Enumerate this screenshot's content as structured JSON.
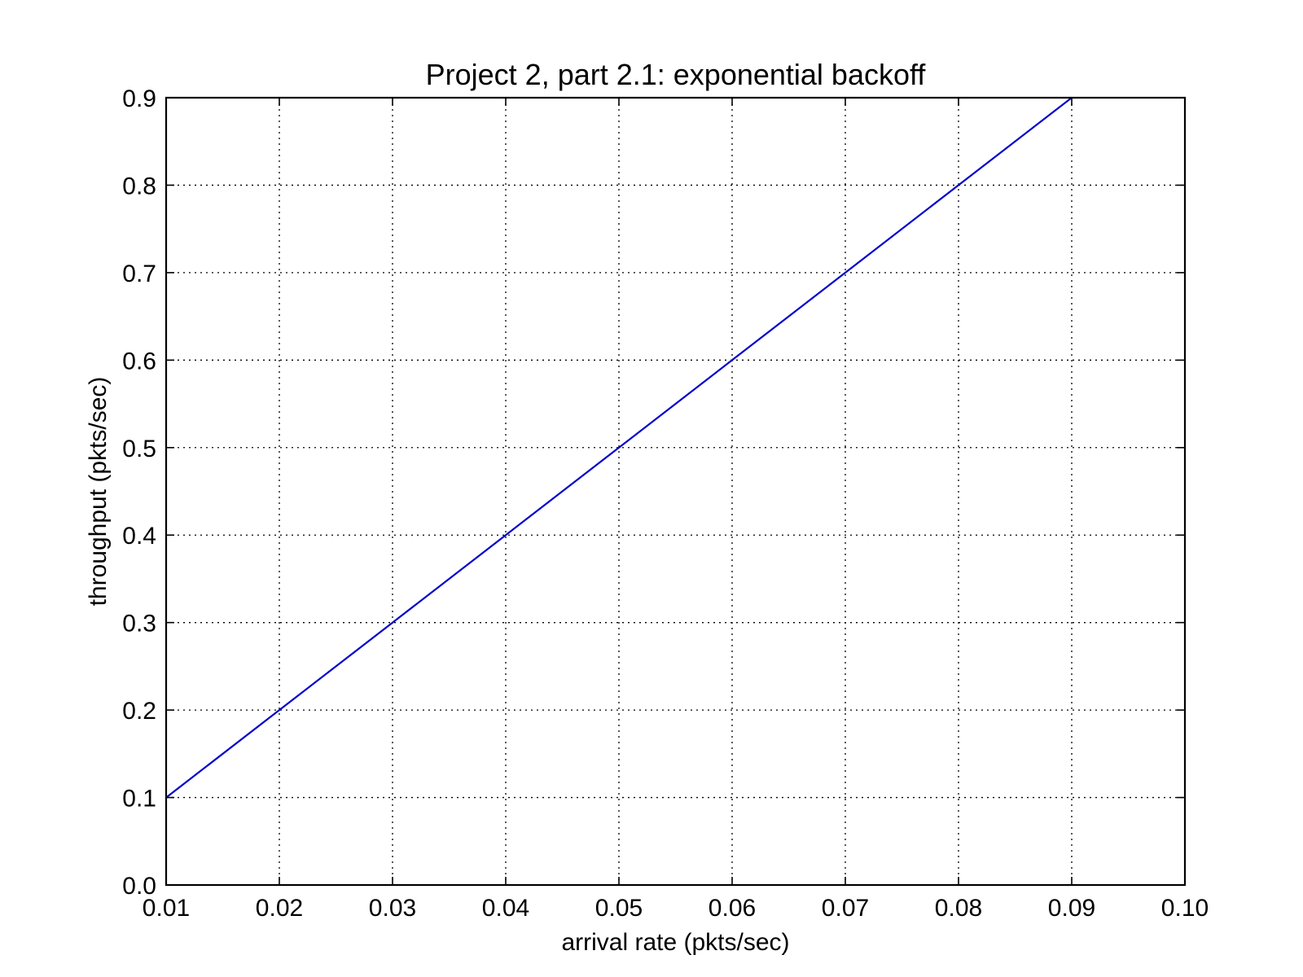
{
  "chart_data": {
    "type": "line",
    "title": "Project 2, part 2.1: exponential backoff",
    "xlabel": "arrival rate (pkts/sec)",
    "ylabel": "throughput (pkts/sec)",
    "xlim": [
      0.01,
      0.1
    ],
    "ylim": [
      0.0,
      0.9
    ],
    "x_ticks": [
      "0.01",
      "0.02",
      "0.03",
      "0.04",
      "0.05",
      "0.06",
      "0.07",
      "0.08",
      "0.09",
      "0.10"
    ],
    "y_ticks": [
      "0.0",
      "0.1",
      "0.2",
      "0.3",
      "0.4",
      "0.5",
      "0.6",
      "0.7",
      "0.8",
      "0.9"
    ],
    "grid": true,
    "series": [
      {
        "color": "#0000cc",
        "x": [
          0.01,
          0.02,
          0.03,
          0.04,
          0.05,
          0.06,
          0.07,
          0.08,
          0.09
        ],
        "y": [
          0.1,
          0.2,
          0.3,
          0.4,
          0.5,
          0.6,
          0.7,
          0.8,
          0.9
        ]
      }
    ]
  }
}
